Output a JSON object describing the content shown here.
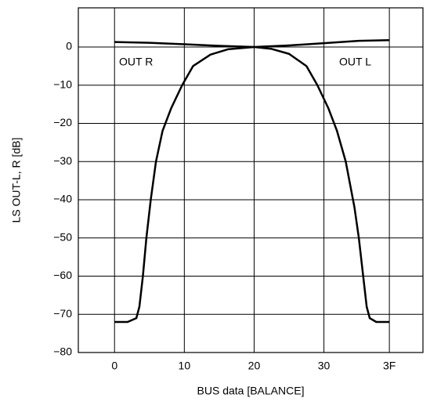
{
  "chart_data": {
    "type": "line",
    "xlabel": "BUS data [BALANCE]",
    "ylabel": "LS OUT-L, R [dB]",
    "annotations": [
      "OUT R",
      "OUT L"
    ],
    "xlim": [
      -8.3,
      70.7
    ],
    "ylim": [
      -80,
      10.25
    ],
    "xticks": [
      0,
      {
        "value": 16,
        "label": "10"
      },
      {
        "value": 32,
        "label": "20"
      },
      {
        "value": 48,
        "label": "30"
      },
      {
        "value": 63,
        "label": "3F"
      }
    ],
    "yticks": [
      0,
      {
        "value": -10,
        "label": "−10"
      },
      {
        "value": -20,
        "label": "−20"
      },
      {
        "value": -30,
        "label": "−30"
      },
      {
        "value": -40,
        "label": "−40"
      },
      {
        "value": -50,
        "label": "−50"
      },
      {
        "value": -60,
        "label": "−60"
      },
      {
        "value": -70,
        "label": "−70"
      },
      {
        "value": -80,
        "label": "−80"
      }
    ],
    "grid": true,
    "series": [
      {
        "name": "OUT R",
        "color": "#000000",
        "x": [
          0,
          8,
          16,
          24,
          32,
          36,
          40,
          44,
          46.5,
          49,
          51,
          53,
          55,
          56,
          57,
          57.8,
          58.5,
          60,
          63
        ],
        "values": [
          1.3,
          1.1,
          0.7,
          0.3,
          0,
          -0.5,
          -1.8,
          -5,
          -10,
          -16,
          -22,
          -30,
          -42,
          -50,
          -60,
          -68,
          -71,
          -72,
          -72
        ]
      },
      {
        "name": "OUT L",
        "color": "#000000",
        "x": [
          0,
          3,
          5,
          5.7,
          6.5,
          7.3,
          8.3,
          9.5,
          11,
          13,
          15.5,
          18,
          22,
          26,
          32,
          40,
          48,
          56,
          63
        ],
        "values": [
          -72,
          -72,
          -71,
          -68,
          -60,
          -50,
          -40,
          -30,
          -22,
          -16,
          -10,
          -5,
          -2,
          -0.6,
          0,
          0.4,
          1,
          1.6,
          1.8
        ]
      }
    ]
  }
}
